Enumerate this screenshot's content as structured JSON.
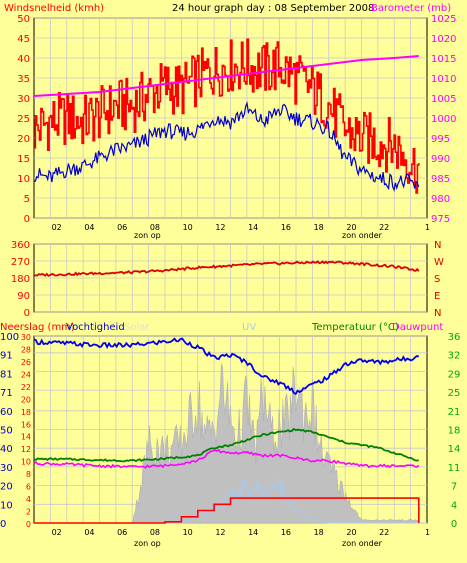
{
  "header": {
    "left_label": "Windsnelheid (kmh)",
    "title": "24 hour graph day : 08 September 2008",
    "right_label": "Barometer (mb)"
  },
  "bottom_header": {
    "rain_label": "Neerslag (mm)",
    "humidity_label": "Vochtigheid",
    "solar_label": "Solar",
    "uv_label": "UV",
    "temp_label": "Temperatuur (°C)",
    "dew_label": "Dauwpunt"
  },
  "x_ticks": [
    "02",
    "04",
    "06",
    "08",
    "10",
    "12",
    "14",
    "16",
    "18",
    "20",
    "22",
    "1"
  ],
  "sun_labels": {
    "sunrise": "zon op",
    "sunset": "zon onder"
  },
  "colors": {
    "background": "#ffff99",
    "plot": "#ffff99",
    "grid": "#c8c8c8",
    "wind_gust": "#ff0000",
    "wind_avg": "#0000cc",
    "pressure": "#ff00ff",
    "direction": "#dd0000",
    "rain": "#ff0000",
    "humidity": "#0000ee",
    "solar": "#c0c0c0",
    "uv": "#a8c8f0",
    "temperature": "#008000",
    "dewpoint": "#ff00ff",
    "right_axis_text": "#00aa00"
  },
  "chart_data": [
    {
      "id": "wind-pressure",
      "type": "line",
      "x_range": [
        0,
        24
      ],
      "left_axis": {
        "label": "Windsnelheid (kmh)",
        "ticks": [
          0,
          5,
          10,
          15,
          20,
          25,
          30,
          35,
          40,
          45,
          50
        ],
        "range": [
          0,
          50
        ]
      },
      "right_axis": {
        "label": "Barometer (mb)",
        "ticks": [
          975,
          980,
          985,
          990,
          995,
          1000,
          1005,
          1010,
          1015,
          1020,
          1025
        ],
        "range": [
          975,
          1025
        ]
      },
      "series": [
        {
          "name": "Windsnelheid (kmh)",
          "axis": "left",
          "style": "gust",
          "x": [
            0,
            1,
            2,
            3,
            4,
            5,
            6,
            7,
            8,
            9,
            10,
            11,
            12,
            13,
            14,
            15,
            16,
            17,
            18,
            19,
            20,
            21,
            22,
            23,
            23.5
          ],
          "y": [
            22,
            24,
            25,
            24,
            26,
            28,
            28,
            31,
            33,
            32,
            35,
            37,
            38,
            38,
            37,
            38,
            35,
            32,
            28,
            22,
            20,
            19,
            18,
            14,
            12
          ]
        },
        {
          "name": "",
          "axis": "left",
          "style": "avg",
          "x": [
            0,
            1,
            2,
            3,
            4,
            5,
            6,
            7,
            8,
            9,
            10,
            11,
            12,
            13,
            14,
            15,
            16,
            17,
            18,
            19,
            20,
            21,
            22,
            23,
            23.5
          ],
          "y": [
            11,
            10,
            12,
            13,
            15,
            17,
            18,
            20,
            22,
            21,
            22,
            25,
            24,
            27,
            24,
            27,
            25,
            24,
            22,
            15,
            12,
            10,
            9,
            9,
            7
          ]
        },
        {
          "name": "Barometer (mb)",
          "axis": "right",
          "style": "line",
          "x": [
            0,
            2,
            4,
            6,
            8,
            10,
            12,
            14,
            16,
            18,
            20,
            22,
            23.5
          ],
          "y": [
            1005.5,
            1006,
            1006.5,
            1007.5,
            1008.5,
            1009.5,
            1010.5,
            1011.5,
            1012.5,
            1013.5,
            1014.5,
            1015,
            1015.5
          ]
        }
      ]
    },
    {
      "id": "wind-direction",
      "type": "line",
      "x_range": [
        0,
        24
      ],
      "left_axis": {
        "ticks": [
          0,
          90,
          180,
          270,
          360
        ],
        "range": [
          0,
          360
        ]
      },
      "right_axis": {
        "labels": [
          "N",
          "W",
          "S",
          "E",
          "N"
        ],
        "ticks": [
          360,
          270,
          180,
          90,
          0
        ]
      },
      "series": [
        {
          "name": "",
          "style": "direction",
          "x": [
            0,
            2,
            4,
            6,
            8,
            10,
            12,
            14,
            16,
            18,
            20,
            22,
            23.5
          ],
          "y": [
            195,
            200,
            205,
            210,
            220,
            235,
            245,
            255,
            260,
            265,
            255,
            240,
            220
          ]
        }
      ]
    },
    {
      "id": "rain-humidity-temp",
      "type": "area",
      "x_range": [
        0,
        24
      ],
      "left_axis": {
        "label": "Neerslag (mm)",
        "ticks": [
          0,
          10,
          20,
          30,
          40,
          50,
          60,
          71,
          81,
          91,
          100
        ],
        "range": [
          0,
          100
        ]
      },
      "left_axis_inner": {
        "label": "Vochtigheid",
        "ticks": [
          0,
          2,
          4,
          6,
          8,
          10,
          12,
          14,
          16,
          18,
          20,
          22,
          24,
          26,
          28,
          30
        ],
        "range": [
          0,
          30
        ]
      },
      "right_axis": {
        "label": "Temperatuur (°C)",
        "ticks": [
          0,
          4,
          7,
          11,
          14,
          18,
          21,
          25,
          29,
          32,
          36
        ],
        "range": [
          0,
          36
        ]
      },
      "series": [
        {
          "name": "Neerslag (mm)",
          "style": "rain",
          "x": [
            0,
            6,
            8,
            9,
            10,
            11,
            12,
            19.5,
            23.5
          ],
          "y": [
            0,
            0,
            0.2,
            1,
            2,
            3,
            4,
            4,
            0
          ]
        },
        {
          "name": "Vochtigheid",
          "style": "humidity",
          "x": [
            0,
            2,
            4,
            6,
            8,
            9,
            10,
            11,
            12,
            13,
            14,
            15,
            16,
            17,
            18,
            19,
            20,
            21,
            22,
            23,
            23.5
          ],
          "y": [
            97,
            96,
            95,
            95,
            97,
            98,
            94,
            88,
            90,
            86,
            78,
            75,
            70,
            74,
            78,
            85,
            87,
            86,
            87,
            88,
            90
          ]
        },
        {
          "name": "Solar",
          "style": "solar",
          "x": [
            0,
            6,
            6.5,
            7,
            8,
            9,
            9.5,
            10,
            10.5,
            11,
            11.5,
            12,
            12.5,
            13,
            13.5,
            14,
            14.5,
            15,
            15.5,
            16,
            16.5,
            17,
            17.5,
            18,
            18.5,
            19,
            19.5,
            20,
            23.5
          ],
          "y": [
            0,
            0,
            25,
            55,
            50,
            55,
            70,
            85,
            60,
            65,
            95,
            70,
            60,
            85,
            50,
            90,
            60,
            65,
            70,
            95,
            75,
            80,
            50,
            40,
            30,
            20,
            10,
            2,
            2
          ]
        },
        {
          "name": "UV",
          "style": "uv",
          "x": [
            0,
            9,
            10,
            10.5,
            11,
            12,
            13,
            14,
            15,
            16,
            17,
            17.5,
            18,
            24
          ],
          "y": [
            0,
            0,
            4,
            6,
            9,
            16,
            23,
            20,
            24,
            8,
            2,
            0.5,
            0,
            0
          ]
        },
        {
          "name": "Temperatuur (°C)",
          "style": "temp",
          "x": [
            0,
            2,
            4,
            6,
            8,
            10,
            11,
            12,
            13,
            14,
            15,
            16,
            17,
            18,
            19,
            20,
            21,
            22,
            23,
            23.5
          ],
          "y": [
            12.3,
            12.3,
            12.1,
            12,
            12.4,
            13,
            14.5,
            15,
            16,
            17,
            17.5,
            18,
            17.5,
            16.5,
            15.5,
            15,
            14.5,
            13.5,
            12.5,
            12
          ]
        },
        {
          "name": "Dauwpunt",
          "style": "dew",
          "x": [
            0,
            2,
            4,
            6,
            8,
            10,
            11,
            12,
            13,
            14,
            15,
            16,
            17,
            18,
            19,
            20,
            21,
            22,
            23,
            23.5
          ],
          "y": [
            11.5,
            11.3,
            11,
            10.8,
            11,
            12,
            14,
            13.5,
            13.5,
            13,
            13,
            12.5,
            12,
            12,
            11.5,
            11,
            11,
            11,
            11,
            11
          ]
        }
      ]
    }
  ]
}
